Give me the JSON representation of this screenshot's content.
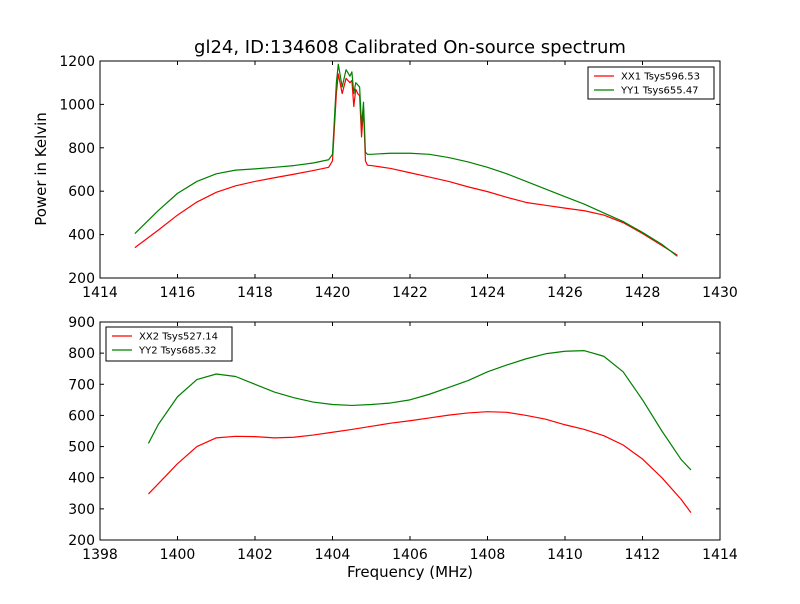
{
  "figure": {
    "title": "gl24, ID:134608 Calibrated On-source spectrum",
    "xlabel": "Frequency (MHz)"
  },
  "colors": {
    "red": "#ff0000",
    "green": "#008000",
    "axes": "#000000"
  },
  "chart_data": [
    {
      "type": "line",
      "title": "gl24, ID:134608 Calibrated On-source spectrum",
      "xlabel": "",
      "ylabel": "Power in Kelvin",
      "xlim": [
        1414,
        1430
      ],
      "ylim": [
        200,
        1200
      ],
      "xticks": [
        1414,
        1416,
        1418,
        1420,
        1422,
        1424,
        1426,
        1428,
        1430
      ],
      "yticks": [
        200,
        400,
        600,
        800,
        1000,
        1200
      ],
      "grid": false,
      "legend_position": "top-right",
      "series": [
        {
          "name": "XX1 Tsys596.53",
          "color": "#ff0000",
          "x": [
            1414.9,
            1415.5,
            1416.0,
            1416.5,
            1417.0,
            1417.5,
            1418.0,
            1418.5,
            1419.0,
            1419.5,
            1419.9,
            1420.0,
            1420.1,
            1420.15,
            1420.25,
            1420.35,
            1420.45,
            1420.5,
            1420.55,
            1420.6,
            1420.65,
            1420.7,
            1420.75,
            1420.8,
            1420.85,
            1420.9,
            1421.0,
            1421.5,
            1422.0,
            1422.5,
            1423.0,
            1423.5,
            1424.0,
            1424.5,
            1425.0,
            1425.5,
            1426.0,
            1426.5,
            1427.0,
            1427.5,
            1428.0,
            1428.5,
            1428.9
          ],
          "y": [
            340,
            420,
            490,
            550,
            595,
            625,
            645,
            662,
            678,
            695,
            710,
            740,
            1050,
            1140,
            1050,
            1120,
            1100,
            1110,
            990,
            1070,
            1050,
            1040,
            850,
            980,
            740,
            720,
            718,
            705,
            685,
            665,
            645,
            620,
            598,
            572,
            548,
            535,
            522,
            510,
            490,
            455,
            405,
            350,
            305
          ]
        },
        {
          "name": "YY1 Tsys655.47",
          "color": "#008000",
          "x": [
            1414.9,
            1415.5,
            1416.0,
            1416.5,
            1417.0,
            1417.5,
            1418.0,
            1418.5,
            1419.0,
            1419.5,
            1419.9,
            1420.0,
            1420.1,
            1420.15,
            1420.25,
            1420.35,
            1420.45,
            1420.5,
            1420.55,
            1420.6,
            1420.65,
            1420.7,
            1420.75,
            1420.8,
            1420.85,
            1420.9,
            1421.0,
            1421.5,
            1422.0,
            1422.5,
            1423.0,
            1423.5,
            1424.0,
            1424.5,
            1425.0,
            1425.5,
            1426.0,
            1426.5,
            1427.0,
            1427.5,
            1428.0,
            1428.5,
            1428.9
          ],
          "y": [
            405,
            510,
            590,
            645,
            680,
            697,
            703,
            710,
            718,
            730,
            745,
            770,
            1100,
            1185,
            1080,
            1160,
            1130,
            1150,
            1050,
            1100,
            1090,
            1080,
            900,
            1010,
            780,
            770,
            770,
            775,
            775,
            770,
            755,
            735,
            710,
            680,
            645,
            610,
            575,
            540,
            500,
            460,
            410,
            355,
            300
          ]
        }
      ]
    },
    {
      "type": "line",
      "xlabel": "Frequency (MHz)",
      "ylabel": "",
      "xlim": [
        1398,
        1414
      ],
      "ylim": [
        200,
        900
      ],
      "xticks": [
        1398,
        1400,
        1402,
        1404,
        1406,
        1408,
        1410,
        1412,
        1414
      ],
      "yticks": [
        200,
        300,
        400,
        500,
        600,
        700,
        800,
        900
      ],
      "grid": false,
      "legend_position": "top-left",
      "series": [
        {
          "name": "XX2 Tsys527.14",
          "color": "#ff0000",
          "x": [
            1399.25,
            1399.5,
            1400.0,
            1400.5,
            1401.0,
            1401.5,
            1402.0,
            1402.5,
            1403.0,
            1403.5,
            1404.0,
            1404.5,
            1405.0,
            1405.5,
            1406.0,
            1406.5,
            1407.0,
            1407.5,
            1408.0,
            1408.5,
            1409.0,
            1409.5,
            1410.0,
            1410.5,
            1411.0,
            1411.5,
            1412.0,
            1412.5,
            1413.0,
            1413.25
          ],
          "y": [
            348,
            380,
            445,
            500,
            528,
            533,
            532,
            528,
            530,
            537,
            546,
            555,
            565,
            575,
            583,
            592,
            601,
            608,
            612,
            610,
            600,
            588,
            570,
            555,
            535,
            505,
            460,
            400,
            330,
            288
          ]
        },
        {
          "name": "YY2 Tsys685.32",
          "color": "#008000",
          "x": [
            1399.25,
            1399.5,
            1400.0,
            1400.5,
            1401.0,
            1401.5,
            1402.0,
            1402.5,
            1403.0,
            1403.5,
            1404.0,
            1404.5,
            1405.0,
            1405.5,
            1406.0,
            1406.5,
            1407.0,
            1407.5,
            1408.0,
            1408.5,
            1409.0,
            1409.5,
            1410.0,
            1410.5,
            1411.0,
            1411.5,
            1412.0,
            1412.5,
            1413.0,
            1413.25
          ],
          "y": [
            510,
            570,
            660,
            715,
            733,
            725,
            700,
            675,
            657,
            643,
            635,
            632,
            635,
            640,
            650,
            668,
            690,
            712,
            740,
            762,
            782,
            798,
            806,
            808,
            790,
            740,
            650,
            550,
            458,
            425
          ]
        }
      ]
    }
  ]
}
